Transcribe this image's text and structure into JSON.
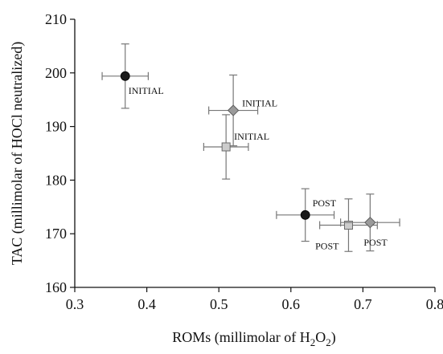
{
  "chart_data": {
    "type": "scatter",
    "xlabel": {
      "text": "ROMs (millimolar of H",
      "sub1": "2",
      "mid": "O",
      "sub2": "2",
      "end": ")"
    },
    "ylabel": "TAC (millimolar of HOCl neutralized)",
    "xlim": [
      0.3,
      0.8
    ],
    "ylim": [
      160,
      210
    ],
    "xticks": [
      "0.3",
      "0.4",
      "0.5",
      "0.6",
      "0.7",
      "0.8"
    ],
    "yticks": [
      "160",
      "170",
      "180",
      "190",
      "200",
      "210"
    ],
    "grid": false,
    "points": [
      {
        "marker": "circle",
        "color": "#1a1a1a",
        "x": 0.37,
        "y": 199.4,
        "xerr": 0.032,
        "yerr": 6.0,
        "label": "INITIAL"
      },
      {
        "marker": "diamond",
        "color": "#9a9a9a",
        "x": 0.52,
        "y": 193.0,
        "xerr": 0.034,
        "yerr": 6.6,
        "label": "INITIAL"
      },
      {
        "marker": "square",
        "color": "#cccccc",
        "x": 0.51,
        "y": 186.2,
        "xerr": 0.031,
        "yerr": 6.0,
        "label": "INITIAL"
      },
      {
        "marker": "circle",
        "color": "#1a1a1a",
        "x": 0.62,
        "y": 173.5,
        "xerr": 0.04,
        "yerr": 4.9,
        "label": "POST"
      },
      {
        "marker": "square",
        "color": "#cccccc",
        "x": 0.68,
        "y": 171.6,
        "xerr": 0.04,
        "yerr": 4.9,
        "label": "POST"
      },
      {
        "marker": "diamond",
        "color": "#9a9a9a",
        "x": 0.71,
        "y": 172.1,
        "xerr": 0.041,
        "yerr": 5.3,
        "label": "POST"
      }
    ]
  }
}
